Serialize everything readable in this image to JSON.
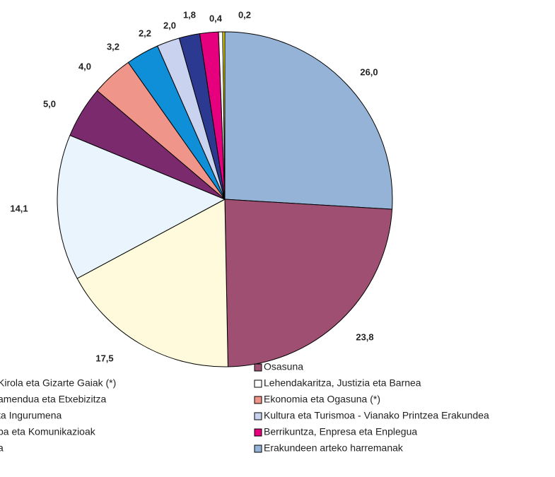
{
  "chart_data": {
    "type": "pie",
    "values": [
      26.0,
      23.8,
      17.5,
      14.1,
      5.0,
      4.0,
      3.2,
      2.2,
      2.0,
      1.8,
      0.4,
      0.2
    ],
    "value_labels": [
      "26,0",
      "23,8",
      "17,5",
      "14,1",
      "5,0",
      "4,0",
      "3,2",
      "2,2",
      "2,0",
      "1,8",
      "0,4",
      "0,2"
    ],
    "colors": [
      "#95b3d7",
      "#9e4f72",
      "#fffadc",
      "#eaf4fc",
      "#7b2a6e",
      "#f0958a",
      "#0f8fd8",
      "#c9d3ef",
      "#2b3990",
      "#e6007e",
      "#ffffff",
      "#fff200"
    ],
    "legend_left": [
      "Kirola eta Gizarte Gaiak (*)",
      "amendua eta Etxebizitza",
      "ta Ingurumena",
      "pa eta Komunikazioak",
      "a"
    ],
    "legend_right": [
      {
        "label": "Osasuna",
        "color": "#9e4f72"
      },
      {
        "label": "Lehendakaritza, Justizia eta Barnea",
        "color": "#ffffff"
      },
      {
        "label": "Ekonomia eta Ogasuna (*)",
        "color": "#f0958a"
      },
      {
        "label": "Kultura eta Turismoa  - Vianako Printzea Erakundea",
        "color": "#c9d3ef"
      },
      {
        "label": "Berrikuntza, Enpresa eta Enplegua",
        "color": "#e6007e"
      },
      {
        "label": "Erakundeen arteko harremanak",
        "color": "#95b3d7"
      }
    ]
  }
}
